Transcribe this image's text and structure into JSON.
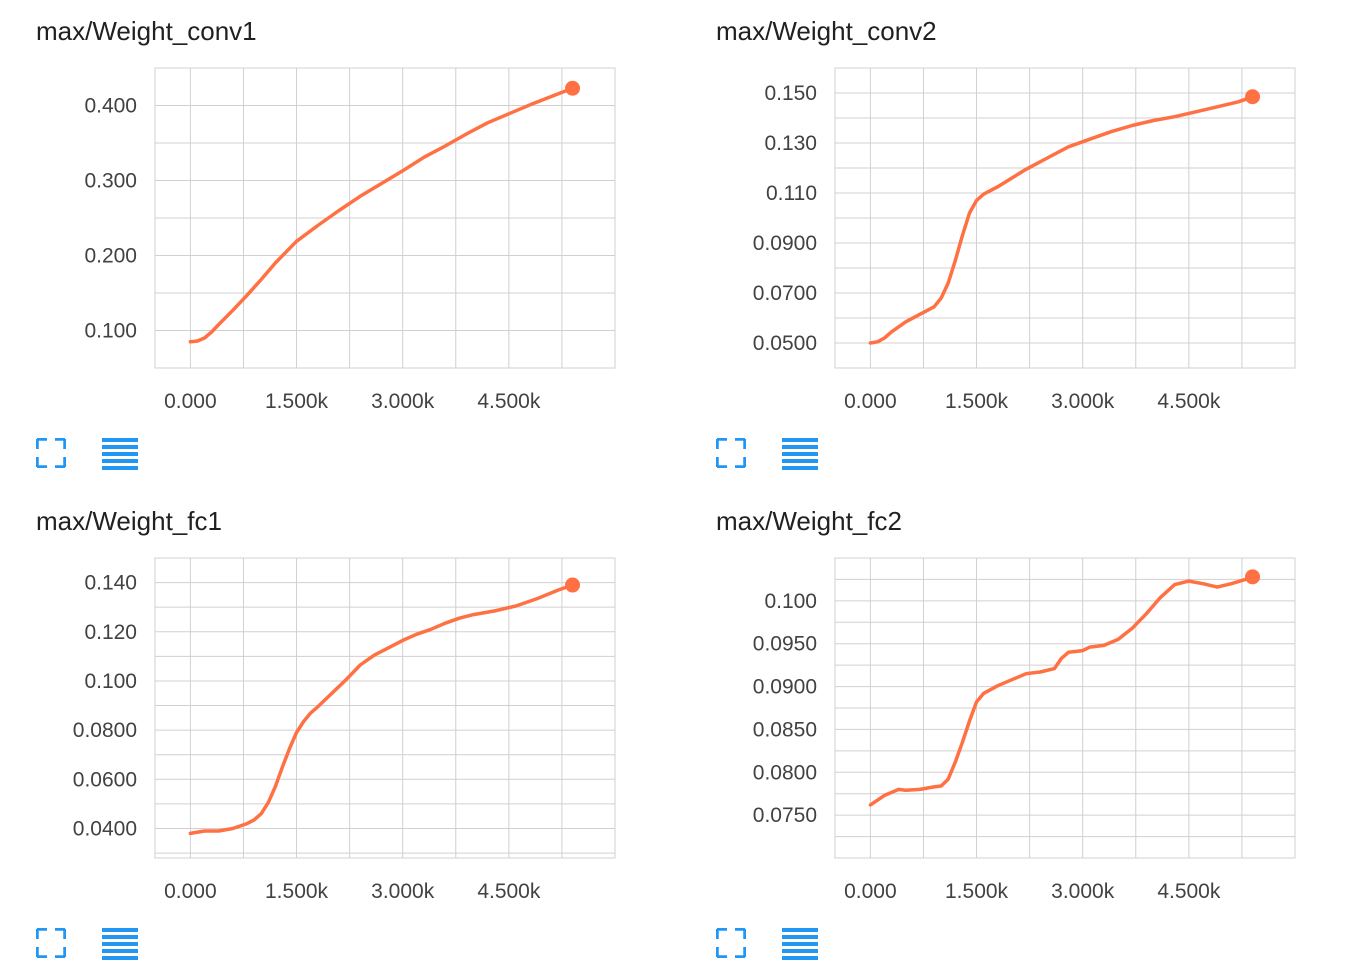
{
  "accent_color": "#2196f3",
  "line_color": "#ff7043",
  "grid_color": "#d0d0d0",
  "icons": {
    "expand": "expand-icon",
    "data": "list-icon"
  },
  "chart_data": [
    {
      "type": "line",
      "title": "max/Weight_conv1",
      "xlim": [
        -500,
        6000
      ],
      "ylim": [
        0.05,
        0.45
      ],
      "x_ticks": [
        0,
        1500,
        3000,
        4500
      ],
      "x_tick_labels": [
        "0.000",
        "1.500k",
        "3.000k",
        "4.500k"
      ],
      "y_ticks": [
        0.1,
        0.2,
        0.3,
        0.4
      ],
      "y_tick_labels": [
        "0.100",
        "0.200",
        "0.300",
        "0.400"
      ],
      "grid": true,
      "series": [
        {
          "x": [
            0,
            100,
            200,
            300,
            400,
            600,
            800,
            1000,
            1200,
            1500,
            1800,
            2100,
            2400,
            2700,
            3000,
            3300,
            3600,
            3900,
            4200,
            4500,
            4800,
            5100,
            5400
          ],
          "y": [
            0.085,
            0.086,
            0.09,
            0.098,
            0.108,
            0.127,
            0.147,
            0.168,
            0.19,
            0.219,
            0.24,
            0.26,
            0.279,
            0.296,
            0.313,
            0.331,
            0.346,
            0.362,
            0.377,
            0.389,
            0.401,
            0.412,
            0.423
          ]
        }
      ]
    },
    {
      "type": "line",
      "title": "max/Weight_conv2",
      "xlim": [
        -500,
        6000
      ],
      "ylim": [
        0.04,
        0.16
      ],
      "x_ticks": [
        0,
        1500,
        3000,
        4500
      ],
      "x_tick_labels": [
        "0.000",
        "1.500k",
        "3.000k",
        "4.500k"
      ],
      "y_ticks": [
        0.05,
        0.07,
        0.09,
        0.11,
        0.13,
        0.15
      ],
      "y_tick_labels": [
        "0.0500",
        "0.0700",
        "0.0900",
        "0.110",
        "0.130",
        "0.150"
      ],
      "grid": true,
      "series": [
        {
          "x": [
            0,
            100,
            200,
            300,
            500,
            700,
            900,
            1000,
            1100,
            1200,
            1300,
            1400,
            1500,
            1600,
            1800,
            2000,
            2200,
            2500,
            2800,
            3100,
            3400,
            3700,
            4000,
            4300,
            4600,
            4900,
            5200,
            5400
          ],
          "y": [
            0.05,
            0.0505,
            0.052,
            0.0545,
            0.0585,
            0.0615,
            0.0645,
            0.068,
            0.074,
            0.083,
            0.093,
            0.102,
            0.107,
            0.1095,
            0.1125,
            0.116,
            0.1195,
            0.124,
            0.1285,
            0.1315,
            0.1345,
            0.137,
            0.139,
            0.1405,
            0.1425,
            0.1445,
            0.1465,
            0.1485
          ]
        }
      ]
    },
    {
      "type": "line",
      "title": "max/Weight_fc1",
      "xlim": [
        -500,
        6000
      ],
      "ylim": [
        0.028,
        0.15
      ],
      "x_ticks": [
        0,
        1500,
        3000,
        4500
      ],
      "x_tick_labels": [
        "0.000",
        "1.500k",
        "3.000k",
        "4.500k"
      ],
      "y_ticks": [
        0.04,
        0.06,
        0.08,
        0.1,
        0.12,
        0.14
      ],
      "y_tick_labels": [
        "0.0400",
        "0.0600",
        "0.0800",
        "0.100",
        "0.120",
        "0.140"
      ],
      "grid": true,
      "series": [
        {
          "x": [
            0,
            200,
            400,
            600,
            800,
            900,
            1000,
            1100,
            1200,
            1300,
            1400,
            1500,
            1600,
            1700,
            1800,
            2000,
            2200,
            2400,
            2600,
            2800,
            3000,
            3200,
            3400,
            3600,
            3800,
            4000,
            4300,
            4600,
            4900,
            5200,
            5400
          ],
          "y": [
            0.038,
            0.039,
            0.039,
            0.04,
            0.042,
            0.0435,
            0.046,
            0.0505,
            0.057,
            0.065,
            0.0725,
            0.079,
            0.0835,
            0.087,
            0.0895,
            0.095,
            0.1005,
            0.1065,
            0.1105,
            0.1135,
            0.1165,
            0.119,
            0.121,
            0.1235,
            0.1255,
            0.127,
            0.1285,
            0.1305,
            0.1335,
            0.137,
            0.139
          ]
        }
      ]
    },
    {
      "type": "line",
      "title": "max/Weight_fc2",
      "xlim": [
        -500,
        6000
      ],
      "ylim": [
        0.07,
        0.105
      ],
      "x_ticks": [
        0,
        1500,
        3000,
        4500
      ],
      "x_tick_labels": [
        "0.000",
        "1.500k",
        "3.000k",
        "4.500k"
      ],
      "y_ticks": [
        0.075,
        0.08,
        0.085,
        0.09,
        0.095,
        0.1
      ],
      "y_tick_labels": [
        "0.0750",
        "0.0800",
        "0.0850",
        "0.0900",
        "0.0950",
        "0.100"
      ],
      "grid": true,
      "series": [
        {
          "x": [
            0,
            200,
            400,
            500,
            700,
            900,
            1000,
            1100,
            1200,
            1300,
            1400,
            1500,
            1600,
            1800,
            2000,
            2200,
            2400,
            2600,
            2700,
            2800,
            3000,
            3100,
            3300,
            3500,
            3700,
            3900,
            4100,
            4300,
            4500,
            4700,
            4900,
            5100,
            5300,
            5400
          ],
          "y": [
            0.0762,
            0.0773,
            0.078,
            0.0779,
            0.078,
            0.0783,
            0.0784,
            0.0792,
            0.0812,
            0.0835,
            0.086,
            0.0882,
            0.0892,
            0.0901,
            0.0908,
            0.0915,
            0.0917,
            0.0921,
            0.0933,
            0.094,
            0.0942,
            0.0946,
            0.0948,
            0.0955,
            0.0968,
            0.0985,
            0.1004,
            0.1019,
            0.1023,
            0.102,
            0.1016,
            0.102,
            0.1025,
            0.1028
          ]
        }
      ]
    }
  ]
}
